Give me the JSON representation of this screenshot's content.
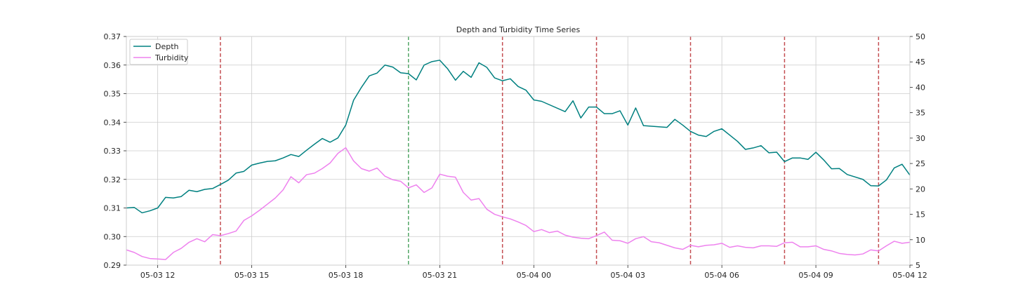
{
  "chart_data": {
    "type": "line",
    "title": "Depth and Turbidity Time Series",
    "xlabel": "",
    "ylabel_left": "",
    "ylabel_right": "",
    "legend_position": "top-left",
    "grid": true,
    "x_range": [
      "2024-05-03 11:00",
      "2024-05-04 12:00"
    ],
    "x_ticks": [
      {
        "t": "2024-05-03 12:00",
        "label": "05-03 12"
      },
      {
        "t": "2024-05-03 15:00",
        "label": "05-03 15"
      },
      {
        "t": "2024-05-03 18:00",
        "label": "05-03 18"
      },
      {
        "t": "2024-05-03 21:00",
        "label": "05-03 21"
      },
      {
        "t": "2024-05-04 00:00",
        "label": "05-04 00"
      },
      {
        "t": "2024-05-04 03:00",
        "label": "05-04 03"
      },
      {
        "t": "2024-05-04 06:00",
        "label": "05-04 06"
      },
      {
        "t": "2024-05-04 09:00",
        "label": "05-04 09"
      },
      {
        "t": "2024-05-04 12:00",
        "label": "05-04 12"
      }
    ],
    "y_left": {
      "min": 0.29,
      "max": 0.37,
      "ticks": [
        0.29,
        0.3,
        0.31,
        0.32,
        0.33,
        0.34,
        0.35,
        0.36,
        0.37
      ],
      "tick_labels": [
        "0.29",
        "0.30",
        "0.31",
        "0.32",
        "0.33",
        "0.34",
        "0.35",
        "0.36",
        "0.37"
      ]
    },
    "y_right": {
      "min": 5,
      "max": 50,
      "ticks": [
        5,
        10,
        15,
        20,
        25,
        30,
        35,
        40,
        45,
        50
      ],
      "tick_labels": [
        "5",
        "10",
        "15",
        "20",
        "25",
        "30",
        "35",
        "40",
        "45",
        "50"
      ]
    },
    "series": [
      {
        "name": "Depth",
        "axis": "left",
        "color": "#008080",
        "points": [
          [
            "2024-05-03 11:00",
            0.31
          ],
          [
            "2024-05-03 11:15",
            0.3102
          ],
          [
            "2024-05-03 11:30",
            0.3083
          ],
          [
            "2024-05-03 11:45",
            0.309
          ],
          [
            "2024-05-03 12:00",
            0.31
          ],
          [
            "2024-05-03 12:15",
            0.3137
          ],
          [
            "2024-05-03 12:30",
            0.3135
          ],
          [
            "2024-05-03 12:45",
            0.314
          ],
          [
            "2024-05-03 13:00",
            0.3162
          ],
          [
            "2024-05-03 13:15",
            0.3157
          ],
          [
            "2024-05-03 13:30",
            0.3165
          ],
          [
            "2024-05-03 13:45",
            0.3168
          ],
          [
            "2024-05-03 14:00",
            0.3182
          ],
          [
            "2024-05-03 14:15",
            0.3197
          ],
          [
            "2024-05-03 14:30",
            0.3222
          ],
          [
            "2024-05-03 14:45",
            0.3228
          ],
          [
            "2024-05-03 15:00",
            0.325
          ],
          [
            "2024-05-03 15:15",
            0.3257
          ],
          [
            "2024-05-03 15:30",
            0.3263
          ],
          [
            "2024-05-03 15:45",
            0.3265
          ],
          [
            "2024-05-03 16:00",
            0.3275
          ],
          [
            "2024-05-03 16:15",
            0.3287
          ],
          [
            "2024-05-03 16:30",
            0.328
          ],
          [
            "2024-05-03 16:45",
            0.3302
          ],
          [
            "2024-05-03 17:00",
            0.3323
          ],
          [
            "2024-05-03 17:15",
            0.3343
          ],
          [
            "2024-05-03 17:30",
            0.333
          ],
          [
            "2024-05-03 17:45",
            0.3345
          ],
          [
            "2024-05-03 18:00",
            0.339
          ],
          [
            "2024-05-03 18:15",
            0.3477
          ],
          [
            "2024-05-03 18:30",
            0.3522
          ],
          [
            "2024-05-03 18:45",
            0.3562
          ],
          [
            "2024-05-03 19:00",
            0.3572
          ],
          [
            "2024-05-03 19:15",
            0.36
          ],
          [
            "2024-05-03 19:30",
            0.3593
          ],
          [
            "2024-05-03 19:45",
            0.3573
          ],
          [
            "2024-05-03 20:00",
            0.357
          ],
          [
            "2024-05-03 20:15",
            0.3548
          ],
          [
            "2024-05-03 20:30",
            0.36
          ],
          [
            "2024-05-03 20:45",
            0.3612
          ],
          [
            "2024-05-03 21:00",
            0.3617
          ],
          [
            "2024-05-03 21:15",
            0.3587
          ],
          [
            "2024-05-03 21:30",
            0.3547
          ],
          [
            "2024-05-03 21:45",
            0.3578
          ],
          [
            "2024-05-03 22:00",
            0.3557
          ],
          [
            "2024-05-03 22:15",
            0.3608
          ],
          [
            "2024-05-03 22:30",
            0.3592
          ],
          [
            "2024-05-03 22:45",
            0.3555
          ],
          [
            "2024-05-03 23:00",
            0.3545
          ],
          [
            "2024-05-03 23:15",
            0.3552
          ],
          [
            "2024-05-03 23:30",
            0.3525
          ],
          [
            "2024-05-03 23:45",
            0.3512
          ],
          [
            "2024-05-04 00:00",
            0.3478
          ],
          [
            "2024-05-04 00:15",
            0.3473
          ],
          [
            "2024-05-04 01:00",
            0.3437
          ],
          [
            "2024-05-04 01:15",
            0.3475
          ],
          [
            "2024-05-04 01:30",
            0.3415
          ],
          [
            "2024-05-04 01:45",
            0.3453
          ],
          [
            "2024-05-04 02:00",
            0.3453
          ],
          [
            "2024-05-04 02:15",
            0.343
          ],
          [
            "2024-05-04 02:30",
            0.343
          ],
          [
            "2024-05-04 02:45",
            0.344
          ],
          [
            "2024-05-04 03:00",
            0.339
          ],
          [
            "2024-05-04 03:15",
            0.345
          ],
          [
            "2024-05-04 03:30",
            0.3388
          ],
          [
            "2024-05-04 04:15",
            0.3382
          ],
          [
            "2024-05-04 04:30",
            0.341
          ],
          [
            "2024-05-04 04:45",
            0.339
          ],
          [
            "2024-05-04 05:00",
            0.3368
          ],
          [
            "2024-05-04 05:15",
            0.3355
          ],
          [
            "2024-05-04 05:30",
            0.335
          ],
          [
            "2024-05-04 05:45",
            0.3368
          ],
          [
            "2024-05-04 06:00",
            0.3377
          ],
          [
            "2024-05-04 06:15",
            0.3355
          ],
          [
            "2024-05-04 06:30",
            0.3333
          ],
          [
            "2024-05-04 06:45",
            0.3305
          ],
          [
            "2024-05-04 07:00",
            0.331
          ],
          [
            "2024-05-04 07:15",
            0.3318
          ],
          [
            "2024-05-04 07:30",
            0.3293
          ],
          [
            "2024-05-04 07:45",
            0.3295
          ],
          [
            "2024-05-04 08:00",
            0.3262
          ],
          [
            "2024-05-04 08:15",
            0.3275
          ],
          [
            "2024-05-04 08:30",
            0.3275
          ],
          [
            "2024-05-04 08:45",
            0.327
          ],
          [
            "2024-05-04 09:00",
            0.3295
          ],
          [
            "2024-05-04 09:15",
            0.3268
          ],
          [
            "2024-05-04 09:30",
            0.3237
          ],
          [
            "2024-05-04 09:45",
            0.3238
          ],
          [
            "2024-05-04 10:00",
            0.3217
          ],
          [
            "2024-05-04 10:30",
            0.32
          ],
          [
            "2024-05-04 10:45",
            0.3178
          ],
          [
            "2024-05-04 11:00",
            0.3177
          ],
          [
            "2024-05-04 11:15",
            0.3198
          ],
          [
            "2024-05-04 11:30",
            0.324
          ],
          [
            "2024-05-04 11:45",
            0.3253
          ],
          [
            "2024-05-04 12:00",
            0.3215
          ]
        ]
      },
      {
        "name": "Turbidity",
        "axis": "right",
        "color": "#ee82ee",
        "points": [
          [
            "2024-05-03 11:00",
            8.0
          ],
          [
            "2024-05-03 11:15",
            7.5
          ],
          [
            "2024-05-03 11:30",
            6.7
          ],
          [
            "2024-05-03 11:45",
            6.3
          ],
          [
            "2024-05-03 12:00",
            6.2
          ],
          [
            "2024-05-03 12:15",
            6.1
          ],
          [
            "2024-05-03 12:30",
            7.5
          ],
          [
            "2024-05-03 12:45",
            8.3
          ],
          [
            "2024-05-03 13:00",
            9.5
          ],
          [
            "2024-05-03 13:15",
            10.2
          ],
          [
            "2024-05-03 13:30",
            9.6
          ],
          [
            "2024-05-03 13:45",
            11.0
          ],
          [
            "2024-05-03 14:00",
            10.8
          ],
          [
            "2024-05-03 14:15",
            11.2
          ],
          [
            "2024-05-03 14:30",
            11.7
          ],
          [
            "2024-05-03 14:45",
            13.8
          ],
          [
            "2024-05-03 15:00",
            14.7
          ],
          [
            "2024-05-03 15:15",
            15.8
          ],
          [
            "2024-05-03 15:30",
            17.0
          ],
          [
            "2024-05-03 15:45",
            18.2
          ],
          [
            "2024-05-03 16:00",
            19.8
          ],
          [
            "2024-05-03 16:15",
            22.4
          ],
          [
            "2024-05-03 16:30",
            21.2
          ],
          [
            "2024-05-03 16:45",
            22.8
          ],
          [
            "2024-05-03 17:00",
            23.1
          ],
          [
            "2024-05-03 17:15",
            24.0
          ],
          [
            "2024-05-03 17:30",
            25.1
          ],
          [
            "2024-05-03 17:45",
            27.0
          ],
          [
            "2024-05-03 18:00",
            28.1
          ],
          [
            "2024-05-03 18:15",
            25.5
          ],
          [
            "2024-05-03 18:30",
            24.0
          ],
          [
            "2024-05-03 18:45",
            23.5
          ],
          [
            "2024-05-03 19:00",
            24.1
          ],
          [
            "2024-05-03 19:15",
            22.5
          ],
          [
            "2024-05-03 19:30",
            21.8
          ],
          [
            "2024-05-03 19:45",
            21.5
          ],
          [
            "2024-05-03 20:00",
            20.2
          ],
          [
            "2024-05-03 20:15",
            20.8
          ],
          [
            "2024-05-03 20:30",
            19.3
          ],
          [
            "2024-05-03 20:45",
            20.2
          ],
          [
            "2024-05-03 21:00",
            22.9
          ],
          [
            "2024-05-03 21:15",
            22.5
          ],
          [
            "2024-05-03 21:30",
            22.3
          ],
          [
            "2024-05-03 21:45",
            19.3
          ],
          [
            "2024-05-03 22:00",
            17.8
          ],
          [
            "2024-05-03 22:15",
            18.1
          ],
          [
            "2024-05-03 22:30",
            16.0
          ],
          [
            "2024-05-03 22:45",
            15.0
          ],
          [
            "2024-05-03 23:00",
            14.5
          ],
          [
            "2024-05-03 23:15",
            14.1
          ],
          [
            "2024-05-03 23:30",
            13.5
          ],
          [
            "2024-05-03 23:45",
            12.8
          ],
          [
            "2024-05-04 00:00",
            11.6
          ],
          [
            "2024-05-04 00:15",
            12.0
          ],
          [
            "2024-05-04 00:30",
            11.4
          ],
          [
            "2024-05-04 00:45",
            11.7
          ],
          [
            "2024-05-04 01:00",
            10.9
          ],
          [
            "2024-05-04 01:15",
            10.5
          ],
          [
            "2024-05-04 01:30",
            10.3
          ],
          [
            "2024-05-04 01:45",
            10.2
          ],
          [
            "2024-05-04 02:00",
            10.8
          ],
          [
            "2024-05-04 02:15",
            11.5
          ],
          [
            "2024-05-04 02:30",
            9.9
          ],
          [
            "2024-05-04 02:45",
            9.8
          ],
          [
            "2024-05-04 03:00",
            9.3
          ],
          [
            "2024-05-04 03:15",
            10.2
          ],
          [
            "2024-05-04 03:30",
            10.6
          ],
          [
            "2024-05-04 03:45",
            9.6
          ],
          [
            "2024-05-04 04:00",
            9.4
          ],
          [
            "2024-05-04 04:15",
            8.9
          ],
          [
            "2024-05-04 04:30",
            8.4
          ],
          [
            "2024-05-04 04:45",
            8.1
          ],
          [
            "2024-05-04 05:00",
            8.9
          ],
          [
            "2024-05-04 05:15",
            8.6
          ],
          [
            "2024-05-04 05:30",
            8.9
          ],
          [
            "2024-05-04 05:45",
            9.0
          ],
          [
            "2024-05-04 06:00",
            9.3
          ],
          [
            "2024-05-04 06:15",
            8.5
          ],
          [
            "2024-05-04 06:30",
            8.8
          ],
          [
            "2024-05-04 06:45",
            8.5
          ],
          [
            "2024-05-04 07:00",
            8.4
          ],
          [
            "2024-05-04 07:15",
            8.8
          ],
          [
            "2024-05-04 07:30",
            8.8
          ],
          [
            "2024-05-04 07:45",
            8.7
          ],
          [
            "2024-05-04 08:00",
            9.4
          ],
          [
            "2024-05-04 08:15",
            9.5
          ],
          [
            "2024-05-04 08:30",
            8.6
          ],
          [
            "2024-05-04 08:45",
            8.6
          ],
          [
            "2024-05-04 09:00",
            8.8
          ],
          [
            "2024-05-04 09:15",
            8.1
          ],
          [
            "2024-05-04 09:30",
            7.8
          ],
          [
            "2024-05-04 09:45",
            7.3
          ],
          [
            "2024-05-04 10:00",
            7.1
          ],
          [
            "2024-05-04 10:15",
            7.0
          ],
          [
            "2024-05-04 10:30",
            7.2
          ],
          [
            "2024-05-04 10:45",
            8.0
          ],
          [
            "2024-05-04 11:00",
            7.8
          ],
          [
            "2024-05-04 11:15",
            8.8
          ],
          [
            "2024-05-04 11:30",
            9.7
          ],
          [
            "2024-05-04 11:45",
            9.3
          ],
          [
            "2024-05-04 12:00",
            9.5
          ]
        ]
      }
    ],
    "vertical_lines": [
      {
        "t": "2024-05-03 14:00",
        "color": "#c44e52",
        "style": "dashed"
      },
      {
        "t": "2024-05-03 20:00",
        "color": "#55a868",
        "style": "dashed"
      },
      {
        "t": "2024-05-03 23:00",
        "color": "#c44e52",
        "style": "dashed"
      },
      {
        "t": "2024-05-04 02:00",
        "color": "#c44e52",
        "style": "dashed"
      },
      {
        "t": "2024-05-04 05:00",
        "color": "#c44e52",
        "style": "dashed"
      },
      {
        "t": "2024-05-04 08:00",
        "color": "#c44e52",
        "style": "dashed"
      },
      {
        "t": "2024-05-04 11:00",
        "color": "#c44e52",
        "style": "dashed"
      }
    ],
    "colors": {
      "grid": "#cccccc",
      "spine": "#cccccc",
      "text": "#262626"
    }
  }
}
